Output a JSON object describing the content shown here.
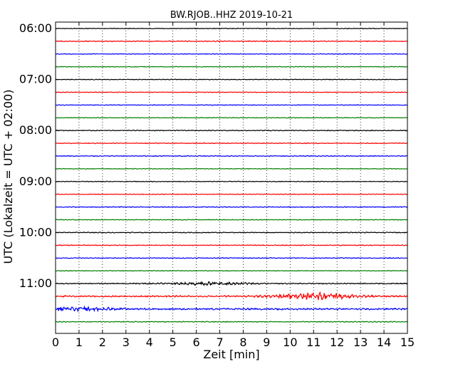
{
  "chart_data": {
    "type": "line",
    "title": "BW.RJOB..HHZ 2019-10-21",
    "xlabel": "Zeit  [min]",
    "ylabel": "UTC (Lokalzeit = UTC + 02:00)",
    "xlim": [
      0,
      15
    ],
    "x_ticks": [
      0,
      1,
      2,
      3,
      4,
      5,
      6,
      7,
      8,
      9,
      10,
      11,
      12,
      13,
      14,
      15
    ],
    "x_tick_labels": [
      "0",
      "1",
      "2",
      "3",
      "4",
      "5",
      "6",
      "7",
      "8",
      "9",
      "10",
      "11",
      "12",
      "13",
      "14",
      "15"
    ],
    "y_tick_labels": [
      "06:00",
      "07:00",
      "08:00",
      "09:00",
      "10:00",
      "11:00"
    ],
    "trace_interval_minutes": 15,
    "grid": "vertical dotted",
    "series": [
      {
        "start": "06:00",
        "color": "#000000",
        "amplitude": 0.08
      },
      {
        "start": "06:15",
        "color": "#ff0000",
        "amplitude": 0.1
      },
      {
        "start": "06:30",
        "color": "#0000ff",
        "amplitude": 0.08
      },
      {
        "start": "06:45",
        "color": "#008000",
        "amplitude": 0.08
      },
      {
        "start": "07:00",
        "color": "#000000",
        "amplitude": 0.08
      },
      {
        "start": "07:15",
        "color": "#ff0000",
        "amplitude": 0.08
      },
      {
        "start": "07:30",
        "color": "#0000ff",
        "amplitude": 0.08
      },
      {
        "start": "07:45",
        "color": "#008000",
        "amplitude": 0.08
      },
      {
        "start": "08:00",
        "color": "#000000",
        "amplitude": 0.1
      },
      {
        "start": "08:15",
        "color": "#ff0000",
        "amplitude": 0.1
      },
      {
        "start": "08:30",
        "color": "#0000ff",
        "amplitude": 0.1
      },
      {
        "start": "08:45",
        "color": "#008000",
        "amplitude": 0.08
      },
      {
        "start": "09:00",
        "color": "#000000",
        "amplitude": 0.08
      },
      {
        "start": "09:15",
        "color": "#ff0000",
        "amplitude": 0.08
      },
      {
        "start": "09:30",
        "color": "#0000ff",
        "amplitude": 0.1
      },
      {
        "start": "09:45",
        "color": "#008000",
        "amplitude": 0.08
      },
      {
        "start": "10:00",
        "color": "#000000",
        "amplitude": 0.1
      },
      {
        "start": "10:15",
        "color": "#ff0000",
        "amplitude": 0.1
      },
      {
        "start": "10:30",
        "color": "#0000ff",
        "amplitude": 0.1
      },
      {
        "start": "10:45",
        "color": "#008000",
        "amplitude": 0.08
      },
      {
        "start": "11:00",
        "color": "#000000",
        "amplitude": 0.12,
        "burst_at": 6.5,
        "burst_amplitude": 0.35
      },
      {
        "start": "11:15",
        "color": "#ff0000",
        "amplitude": 0.18,
        "burst_at": 11.0,
        "burst_amplitude": 0.7
      },
      {
        "start": "11:30",
        "color": "#0000ff",
        "amplitude": 0.2,
        "burst_at": 1.0,
        "burst_amplitude": 0.35
      },
      {
        "start": "11:45",
        "color": "#008000",
        "amplitude": 0.1
      }
    ]
  }
}
